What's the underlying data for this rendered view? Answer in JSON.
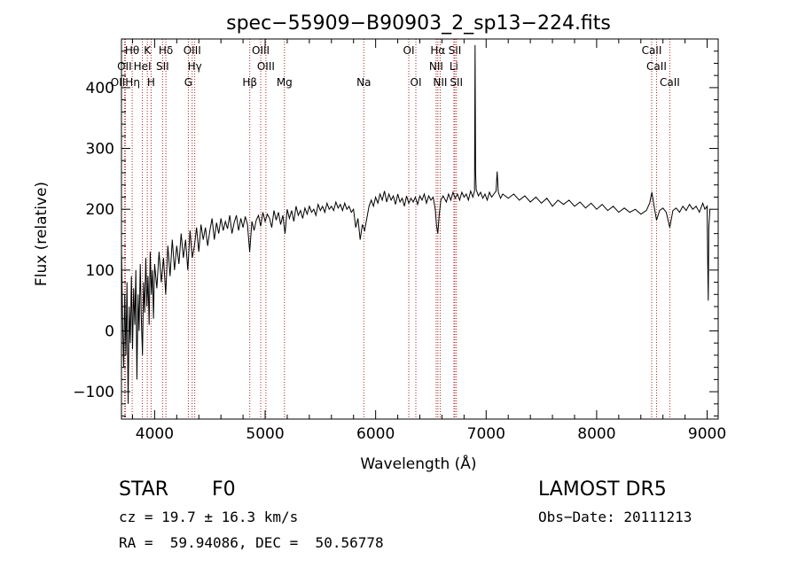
{
  "chart_data": {
    "type": "line",
    "title": "spec−55909−B90903_2_sp13−224.fits",
    "xlabel": "Wavelength (Å)",
    "ylabel": "Flux (relative)",
    "xlim": [
      3700,
      9100
    ],
    "ylim": [
      -145,
      480
    ],
    "xticks": [
      4000,
      5000,
      6000,
      7000,
      8000,
      9000
    ],
    "yticks": [
      -100,
      0,
      100,
      200,
      300,
      400
    ],
    "ytick_labels": [
      "−100",
      "0",
      "100",
      "200",
      "300",
      "400"
    ],
    "series": [
      {
        "points": [
          [
            3700,
            140
          ],
          [
            3710,
            20
          ],
          [
            3720,
            -60
          ],
          [
            3730,
            60
          ],
          [
            3740,
            -40
          ],
          [
            3750,
            80
          ],
          [
            3760,
            -120
          ],
          [
            3770,
            40
          ],
          [
            3780,
            -20
          ],
          [
            3790,
            90
          ],
          [
            3800,
            -30
          ],
          [
            3810,
            70
          ],
          [
            3820,
            10
          ],
          [
            3830,
            100
          ],
          [
            3840,
            -80
          ],
          [
            3850,
            60
          ],
          [
            3860,
            0
          ],
          [
            3870,
            110
          ],
          [
            3880,
            20
          ],
          [
            3890,
            -40
          ],
          [
            3900,
            80
          ],
          [
            3910,
            30
          ],
          [
            3920,
            120
          ],
          [
            3930,
            40
          ],
          [
            3940,
            90
          ],
          [
            3950,
            10
          ],
          [
            3960,
            130
          ],
          [
            3970,
            60
          ],
          [
            3980,
            100
          ],
          [
            3990,
            20
          ],
          [
            4000,
            110
          ],
          [
            4020,
            70
          ],
          [
            4040,
            130
          ],
          [
            4060,
            80
          ],
          [
            4080,
            120
          ],
          [
            4100,
            60
          ],
          [
            4120,
            140
          ],
          [
            4140,
            90
          ],
          [
            4160,
            150
          ],
          [
            4180,
            100
          ],
          [
            4200,
            140
          ],
          [
            4220,
            110
          ],
          [
            4240,
            160
          ],
          [
            4260,
            120
          ],
          [
            4280,
            150
          ],
          [
            4300,
            100
          ],
          [
            4320,
            165
          ],
          [
            4340,
            120
          ],
          [
            4360,
            140
          ],
          [
            4380,
            170
          ],
          [
            4400,
            130
          ],
          [
            4420,
            175
          ],
          [
            4440,
            150
          ],
          [
            4460,
            170
          ],
          [
            4480,
            140
          ],
          [
            4500,
            165
          ],
          [
            4520,
            185
          ],
          [
            4540,
            150
          ],
          [
            4560,
            178
          ],
          [
            4580,
            160
          ],
          [
            4600,
            185
          ],
          [
            4620,
            165
          ],
          [
            4640,
            180
          ],
          [
            4660,
            168
          ],
          [
            4680,
            190
          ],
          [
            4700,
            160
          ],
          [
            4720,
            178
          ],
          [
            4740,
            190
          ],
          [
            4760,
            165
          ],
          [
            4780,
            185
          ],
          [
            4800,
            170
          ],
          [
            4820,
            188
          ],
          [
            4840,
            175
          ],
          [
            4860,
            130
          ],
          [
            4880,
            180
          ],
          [
            4900,
            165
          ],
          [
            4920,
            182
          ],
          [
            4940,
            190
          ],
          [
            4960,
            172
          ],
          [
            4980,
            195
          ],
          [
            5000,
            180
          ],
          [
            5020,
            192
          ],
          [
            5040,
            185
          ],
          [
            5060,
            170
          ],
          [
            5080,
            198
          ],
          [
            5100,
            182
          ],
          [
            5120,
            195
          ],
          [
            5140,
            175
          ],
          [
            5160,
            190
          ],
          [
            5180,
            160
          ],
          [
            5200,
            200
          ],
          [
            5220,
            185
          ],
          [
            5240,
            198
          ],
          [
            5260,
            180
          ],
          [
            5280,
            205
          ],
          [
            5300,
            190
          ],
          [
            5320,
            198
          ],
          [
            5340,
            185
          ],
          [
            5360,
            202
          ],
          [
            5380,
            192
          ],
          [
            5400,
            205
          ],
          [
            5420,
            195
          ],
          [
            5440,
            200
          ],
          [
            5460,
            190
          ],
          [
            5480,
            208
          ],
          [
            5500,
            198
          ],
          [
            5520,
            205
          ],
          [
            5540,
            195
          ],
          [
            5560,
            210
          ],
          [
            5580,
            200
          ],
          [
            5600,
            205
          ],
          [
            5620,
            198
          ],
          [
            5640,
            212
          ],
          [
            5660,
            202
          ],
          [
            5680,
            208
          ],
          [
            5700,
            198
          ],
          [
            5720,
            210
          ],
          [
            5740,
            200
          ],
          [
            5760,
            205
          ],
          [
            5780,
            195
          ],
          [
            5800,
            200
          ],
          [
            5820,
            170
          ],
          [
            5840,
            185
          ],
          [
            5860,
            150
          ],
          [
            5880,
            175
          ],
          [
            5900,
            165
          ],
          [
            5920,
            185
          ],
          [
            5940,
            205
          ],
          [
            5960,
            215
          ],
          [
            5980,
            205
          ],
          [
            6000,
            220
          ],
          [
            6020,
            210
          ],
          [
            6040,
            225
          ],
          [
            6060,
            215
          ],
          [
            6080,
            230
          ],
          [
            6100,
            212
          ],
          [
            6120,
            225
          ],
          [
            6140,
            215
          ],
          [
            6160,
            222
          ],
          [
            6180,
            208
          ],
          [
            6200,
            225
          ],
          [
            6220,
            212
          ],
          [
            6240,
            218
          ],
          [
            6260,
            205
          ],
          [
            6280,
            222
          ],
          [
            6300,
            210
          ],
          [
            6320,
            218
          ],
          [
            6340,
            212
          ],
          [
            6360,
            220
          ],
          [
            6380,
            208
          ],
          [
            6400,
            222
          ],
          [
            6420,
            215
          ],
          [
            6440,
            225
          ],
          [
            6460,
            210
          ],
          [
            6480,
            222
          ],
          [
            6500,
            215
          ],
          [
            6520,
            220
          ],
          [
            6540,
            200
          ],
          [
            6550,
            175
          ],
          [
            6563,
            160
          ],
          [
            6575,
            190
          ],
          [
            6590,
            215
          ],
          [
            6610,
            222
          ],
          [
            6640,
            212
          ],
          [
            6660,
            225
          ],
          [
            6680,
            215
          ],
          [
            6700,
            228
          ],
          [
            6720,
            218
          ],
          [
            6740,
            225
          ],
          [
            6760,
            215
          ],
          [
            6780,
            228
          ],
          [
            6800,
            220
          ],
          [
            6820,
            225
          ],
          [
            6840,
            215
          ],
          [
            6860,
            230
          ],
          [
            6880,
            220
          ],
          [
            6895,
            230
          ],
          [
            6900,
            470
          ],
          [
            6905,
            260
          ],
          [
            6910,
            232
          ],
          [
            6930,
            222
          ],
          [
            6950,
            228
          ],
          [
            6970,
            218
          ],
          [
            6990,
            225
          ],
          [
            7010,
            215
          ],
          [
            7030,
            228
          ],
          [
            7050,
            220
          ],
          [
            7070,
            225
          ],
          [
            7090,
            230
          ],
          [
            7100,
            262
          ],
          [
            7110,
            228
          ],
          [
            7130,
            218
          ],
          [
            7150,
            225
          ],
          [
            7200,
            218
          ],
          [
            7250,
            225
          ],
          [
            7300,
            215
          ],
          [
            7350,
            222
          ],
          [
            7400,
            212
          ],
          [
            7450,
            220
          ],
          [
            7500,
            210
          ],
          [
            7550,
            218
          ],
          [
            7600,
            205
          ],
          [
            7650,
            215
          ],
          [
            7700,
            208
          ],
          [
            7750,
            215
          ],
          [
            7800,
            205
          ],
          [
            7850,
            212
          ],
          [
            7900,
            202
          ],
          [
            7950,
            210
          ],
          [
            8000,
            200
          ],
          [
            8050,
            208
          ],
          [
            8100,
            198
          ],
          [
            8150,
            205
          ],
          [
            8200,
            195
          ],
          [
            8250,
            202
          ],
          [
            8300,
            195
          ],
          [
            8350,
            200
          ],
          [
            8400,
            192
          ],
          [
            8450,
            198
          ],
          [
            8480,
            210
          ],
          [
            8500,
            228
          ],
          [
            8520,
            205
          ],
          [
            8542,
            182
          ],
          [
            8570,
            198
          ],
          [
            8600,
            202
          ],
          [
            8630,
            195
          ],
          [
            8662,
            170
          ],
          [
            8690,
            198
          ],
          [
            8720,
            202
          ],
          [
            8750,
            195
          ],
          [
            8780,
            205
          ],
          [
            8810,
            198
          ],
          [
            8840,
            208
          ],
          [
            8870,
            200
          ],
          [
            8900,
            205
          ],
          [
            8930,
            195
          ],
          [
            8960,
            210
          ],
          [
            8980,
            200
          ],
          [
            9000,
            205
          ],
          [
            9005,
            110
          ],
          [
            9010,
            50
          ],
          [
            9015,
            170
          ],
          [
            9025,
            200
          ]
        ]
      }
    ],
    "lines": [
      {
        "label": "Hθ",
        "x": 3797,
        "row": 0
      },
      {
        "label": "K",
        "x": 3934,
        "row": 0
      },
      {
        "label": "Hδ",
        "x": 4102,
        "row": 0
      },
      {
        "label": "OIII",
        "x": 4340,
        "row": 0
      },
      {
        "label": "OIII",
        "x": 4960,
        "row": 0
      },
      {
        "label": "OI",
        "x": 6300,
        "row": 0
      },
      {
        "label": "Hα",
        "x": 6563,
        "row": 0
      },
      {
        "label": "SII",
        "x": 6717,
        "row": 0
      },
      {
        "label": "CaII",
        "x": 8498,
        "row": 0
      },
      {
        "label": "OII",
        "x": 3727,
        "row": 1
      },
      {
        "label": "HeI",
        "x": 3889,
        "row": 1
      },
      {
        "label": "SII",
        "x": 4072,
        "row": 1
      },
      {
        "label": "Hγ",
        "x": 4363,
        "row": 1
      },
      {
        "label": "OIII",
        "x": 5007,
        "row": 1
      },
      {
        "label": "NII",
        "x": 6548,
        "row": 1
      },
      {
        "label": "Li",
        "x": 6708,
        "row": 1
      },
      {
        "label": "CaII",
        "x": 8542,
        "row": 1
      },
      {
        "label": "OIIHη",
        "x": 3735,
        "row": 2
      },
      {
        "label": "H",
        "x": 3968,
        "row": 2
      },
      {
        "label": "G",
        "x": 4305,
        "row": 2
      },
      {
        "label": "Hβ",
        "x": 4861,
        "row": 2
      },
      {
        "label": "Mg",
        "x": 5175,
        "row": 2
      },
      {
        "label": "Na",
        "x": 5893,
        "row": 2
      },
      {
        "label": "OI",
        "x": 6364,
        "row": 2
      },
      {
        "label": "NII",
        "x": 6584,
        "row": 2
      },
      {
        "label": "SII",
        "x": 6731,
        "row": 2
      },
      {
        "label": "CaII",
        "x": 8662,
        "row": 2
      }
    ],
    "line_color": "#b22222",
    "spectrum_color": "#000000"
  },
  "info": {
    "object_class": "STAR",
    "subclass": "F0",
    "survey": "LAMOST DR5",
    "cz": "cz = 19.7 ± 16.3 km/s",
    "obs_date": "Obs−Date: 20111213",
    "coords": "RA =  59.94086, DEC =  50.56778"
  }
}
